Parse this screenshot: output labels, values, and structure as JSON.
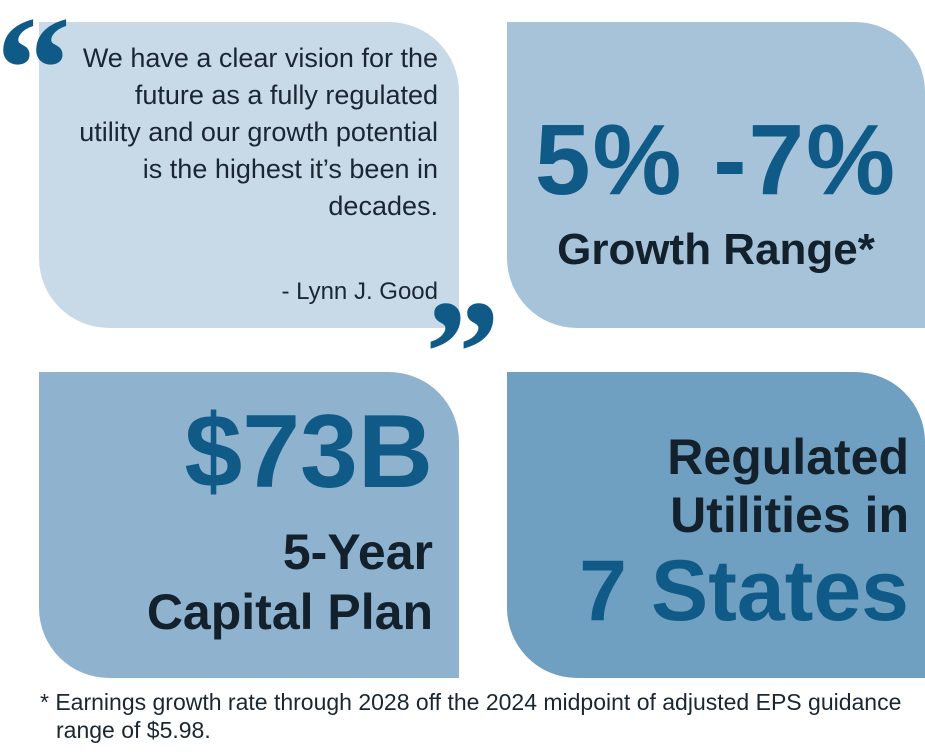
{
  "quote": {
    "text": "We have a clear vision for the future as a fully regulated utility and our growth potential is the highest it’s been in decades.",
    "author": "- Lynn J. Good",
    "open_mark": "“",
    "close_mark": "”"
  },
  "growth": {
    "range": "5% -7%",
    "label": "Growth Range*"
  },
  "capital": {
    "amount": "$73B",
    "label_line1": "5-Year",
    "label_line2": "Capital Plan"
  },
  "states": {
    "label_line1": "Regulated",
    "label_line2": "Utilities in",
    "count": "7 States"
  },
  "footnote": "* Earnings growth rate through 2028 off the 2024 midpoint of adjusted EPS guidance range of $5.98.",
  "colors": {
    "accent": "#0f5a86",
    "dark_text": "#13212d",
    "quote_bg": "#c8d9e8",
    "growth_bg": "#a6c3da",
    "capital_bg": "#8fb3cf",
    "states_bg": "#6fa0c2"
  }
}
